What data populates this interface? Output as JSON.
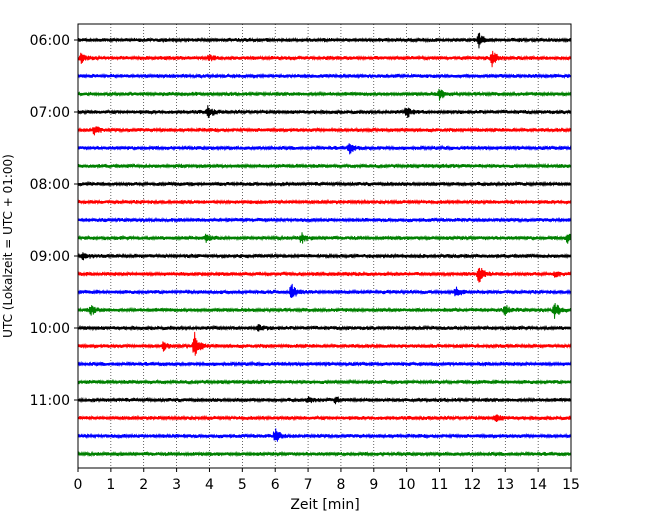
{
  "chart_data": {
    "type": "line",
    "title": "",
    "xlabel": "Zeit  [min]",
    "ylabel": "UTC (Lokalzeit = UTC + 01:00)",
    "xlim": [
      0,
      15
    ],
    "x_ticks": [
      "0",
      "1",
      "2",
      "3",
      "4",
      "5",
      "6",
      "7",
      "8",
      "9",
      "10",
      "11",
      "12",
      "13",
      "14",
      "15"
    ],
    "y_ticks": [
      "06:00",
      "07:00",
      "08:00",
      "09:00",
      "10:00",
      "11:00"
    ],
    "grid": "vertical dotted",
    "trace_interval_min": 15,
    "trace_colors": [
      "#000000",
      "#ff0000",
      "#0000ff",
      "#008000"
    ],
    "series": [
      {
        "start": "06:00",
        "color": "#000000",
        "events": [
          {
            "x": 12.2,
            "amp": 0.8
          }
        ]
      },
      {
        "start": "06:15",
        "color": "#ff0000",
        "events": [
          {
            "x": 0.1,
            "amp": 0.5
          },
          {
            "x": 12.6,
            "amp": 0.9
          },
          {
            "x": 4.0,
            "amp": 0.3
          }
        ]
      },
      {
        "start": "06:30",
        "color": "#0000ff",
        "events": []
      },
      {
        "start": "06:45",
        "color": "#008000",
        "events": [
          {
            "x": 11.0,
            "amp": 0.6
          }
        ]
      },
      {
        "start": "07:00",
        "color": "#000000",
        "events": [
          {
            "x": 3.95,
            "amp": 0.7
          },
          {
            "x": 10.0,
            "amp": 0.7
          }
        ]
      },
      {
        "start": "07:15",
        "color": "#ff0000",
        "events": [
          {
            "x": 0.5,
            "amp": 0.5
          }
        ]
      },
      {
        "start": "07:30",
        "color": "#0000ff",
        "events": [
          {
            "x": 8.25,
            "amp": 0.6
          }
        ]
      },
      {
        "start": "07:45",
        "color": "#008000",
        "events": []
      },
      {
        "start": "08:00",
        "color": "#000000",
        "events": []
      },
      {
        "start": "08:15",
        "color": "#ff0000",
        "events": []
      },
      {
        "start": "08:30",
        "color": "#0000ff",
        "events": []
      },
      {
        "start": "08:45",
        "color": "#008000",
        "events": [
          {
            "x": 3.9,
            "amp": 0.4
          },
          {
            "x": 6.8,
            "amp": 0.6
          },
          {
            "x": 14.9,
            "amp": 0.5
          }
        ]
      },
      {
        "start": "09:00",
        "color": "#000000",
        "events": [
          {
            "x": 0.15,
            "amp": 0.4
          }
        ]
      },
      {
        "start": "09:15",
        "color": "#ff0000",
        "events": [
          {
            "x": 12.2,
            "amp": 1.0
          },
          {
            "x": 14.5,
            "amp": 0.3
          }
        ]
      },
      {
        "start": "09:30",
        "color": "#0000ff",
        "events": [
          {
            "x": 6.5,
            "amp": 0.9
          },
          {
            "x": 11.5,
            "amp": 0.5
          }
        ]
      },
      {
        "start": "09:45",
        "color": "#008000",
        "events": [
          {
            "x": 0.4,
            "amp": 0.5
          },
          {
            "x": 13.0,
            "amp": 0.5
          },
          {
            "x": 14.5,
            "amp": 1.0
          }
        ]
      },
      {
        "start": "10:00",
        "color": "#000000",
        "events": [
          {
            "x": 5.5,
            "amp": 0.3
          }
        ]
      },
      {
        "start": "10:15",
        "color": "#ff0000",
        "events": [
          {
            "x": 2.6,
            "amp": 0.5
          },
          {
            "x": 3.55,
            "amp": 1.4
          }
        ]
      },
      {
        "start": "10:30",
        "color": "#0000ff",
        "events": []
      },
      {
        "start": "10:45",
        "color": "#008000",
        "events": []
      },
      {
        "start": "11:00",
        "color": "#000000",
        "events": [
          {
            "x": 7.0,
            "amp": 0.4
          },
          {
            "x": 7.85,
            "amp": 0.4
          }
        ]
      },
      {
        "start": "11:15",
        "color": "#ff0000",
        "events": [
          {
            "x": 12.7,
            "amp": 0.4
          }
        ]
      },
      {
        "start": "11:30",
        "color": "#0000ff",
        "events": [
          {
            "x": 6.0,
            "amp": 0.8
          }
        ]
      },
      {
        "start": "11:45",
        "color": "#008000",
        "events": []
      }
    ]
  }
}
